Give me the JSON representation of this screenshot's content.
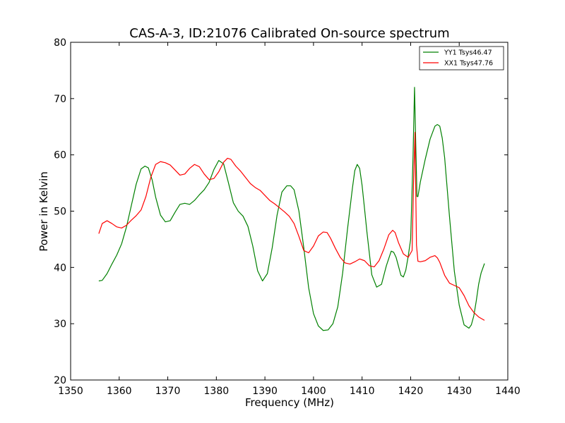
{
  "chart_data": {
    "type": "line",
    "title": "CAS-A-3, ID:21076 Calibrated On-source spectrum",
    "xlabel": "Frequency (MHz)",
    "ylabel": "Power in Kelvin",
    "xlim": [
      1350,
      1440
    ],
    "ylim": [
      20,
      80
    ],
    "xticks": [
      1350,
      1360,
      1370,
      1380,
      1390,
      1400,
      1410,
      1420,
      1430,
      1440
    ],
    "yticks": [
      20,
      30,
      40,
      50,
      60,
      70,
      80
    ],
    "grid": false,
    "legend_position": "top-right",
    "series": [
      {
        "name": "YY1 Tsys46.47",
        "color": "#008000",
        "x": [
          1355.8,
          1356.5,
          1357.5,
          1358.5,
          1359.5,
          1360.5,
          1361.5,
          1362.5,
          1363.5,
          1364.5,
          1365.3,
          1366.0,
          1366.8,
          1367.5,
          1368.5,
          1369.5,
          1370.5,
          1371.5,
          1372.5,
          1373.5,
          1374.5,
          1375.5,
          1376.5,
          1377.5,
          1378.5,
          1379.5,
          1380.5,
          1381.5,
          1382.5,
          1383.5,
          1384.5,
          1385.5,
          1386.5,
          1387.5,
          1388.5,
          1389.5,
          1390.5,
          1391.5,
          1392.5,
          1393.5,
          1394.5,
          1395.3,
          1396.0,
          1397.0,
          1398.0,
          1399.0,
          1400.0,
          1401.0,
          1402.0,
          1403.0,
          1404.0,
          1405.0,
          1406.0,
          1407.0,
          1408.0,
          1408.5,
          1409.0,
          1409.5,
          1410.0,
          1410.5,
          1411.0,
          1412.0,
          1413.0,
          1414.0,
          1415.0,
          1416.0,
          1416.5,
          1417.0,
          1418.0,
          1418.5,
          1419.0,
          1419.5,
          1420.0,
          1420.5,
          1420.8,
          1421.0,
          1421.3,
          1421.5,
          1422.0,
          1423.0,
          1424.0,
          1425.0,
          1425.5,
          1426.0,
          1426.5,
          1427.0,
          1428.0,
          1429.0,
          1430.0,
          1431.0,
          1432.0,
          1432.5,
          1433.0,
          1433.5,
          1434.0,
          1434.5,
          1435.2
        ],
        "y": [
          37.6,
          37.7,
          38.9,
          40.6,
          42.2,
          44.2,
          47.2,
          51.0,
          54.8,
          57.5,
          58.0,
          57.7,
          55.5,
          52.5,
          49.3,
          48.1,
          48.3,
          49.8,
          51.2,
          51.4,
          51.2,
          51.9,
          52.9,
          53.8,
          55.1,
          57.4,
          59.0,
          58.4,
          55.0,
          51.5,
          50.0,
          49.1,
          47.3,
          43.8,
          39.4,
          37.6,
          38.9,
          43.5,
          49.3,
          53.4,
          54.5,
          54.5,
          53.8,
          50.0,
          43.5,
          36.4,
          31.8,
          29.6,
          28.8,
          28.9,
          30.0,
          33.0,
          39.0,
          46.8,
          54.0,
          57.2,
          58.3,
          57.6,
          54.6,
          50.5,
          46.3,
          38.7,
          36.5,
          37.0,
          40.3,
          42.9,
          42.7,
          41.8,
          38.6,
          38.3,
          39.5,
          42.0,
          45.0,
          60.0,
          72.0,
          64.0,
          52.6,
          52.6,
          55.2,
          59.2,
          62.8,
          65.1,
          65.4,
          65.1,
          63.0,
          59.5,
          49.0,
          39.3,
          33.3,
          29.8,
          29.2,
          29.8,
          31.4,
          34.0,
          37.0,
          39.0,
          40.7
        ]
      },
      {
        "name": "XX1 Tsys47.76",
        "color": "#ff0000",
        "x": [
          1355.8,
          1356.5,
          1357.5,
          1358.5,
          1359.5,
          1360.5,
          1361.5,
          1362.5,
          1363.5,
          1364.5,
          1365.5,
          1366.5,
          1367.5,
          1368.5,
          1369.5,
          1370.5,
          1371.5,
          1372.5,
          1373.5,
          1374.5,
          1375.5,
          1376.5,
          1377.5,
          1378.5,
          1379.5,
          1380.5,
          1381.5,
          1382.3,
          1383.0,
          1384.0,
          1385.0,
          1386.0,
          1387.0,
          1388.0,
          1389.0,
          1390.0,
          1391.0,
          1392.0,
          1393.0,
          1394.0,
          1395.0,
          1396.0,
          1397.0,
          1398.0,
          1399.0,
          1400.0,
          1401.0,
          1402.0,
          1402.8,
          1403.5,
          1404.5,
          1405.5,
          1406.5,
          1407.5,
          1408.5,
          1409.5,
          1410.5,
          1411.5,
          1412.5,
          1413.5,
          1414.5,
          1415.5,
          1416.3,
          1416.8,
          1417.5,
          1418.5,
          1419.5,
          1420.3,
          1420.6,
          1420.9,
          1421.2,
          1421.5,
          1422.0,
          1423.0,
          1424.0,
          1425.0,
          1425.5,
          1426.0,
          1427.0,
          1428.0,
          1429.0,
          1430.0,
          1431.0,
          1432.0,
          1433.0,
          1434.0,
          1435.2
        ],
        "y": [
          46.0,
          47.8,
          48.3,
          47.8,
          47.2,
          47.0,
          47.5,
          48.4,
          49.2,
          50.2,
          52.6,
          56.0,
          58.3,
          58.8,
          58.6,
          58.2,
          57.3,
          56.4,
          56.6,
          57.6,
          58.3,
          57.9,
          56.6,
          55.6,
          55.8,
          57.0,
          58.7,
          59.4,
          59.2,
          58.0,
          57.1,
          56.0,
          54.9,
          54.2,
          53.7,
          52.8,
          51.9,
          51.3,
          50.6,
          49.9,
          49.1,
          47.8,
          45.5,
          43.0,
          42.6,
          43.8,
          45.6,
          46.3,
          46.2,
          45.2,
          43.4,
          41.8,
          40.8,
          40.6,
          41.0,
          41.5,
          41.2,
          40.3,
          40.1,
          41.2,
          43.3,
          45.8,
          46.6,
          46.2,
          44.4,
          42.4,
          41.8,
          43.0,
          55.0,
          64.0,
          44.0,
          41.1,
          41.0,
          41.2,
          41.8,
          42.1,
          41.7,
          40.9,
          38.6,
          37.2,
          36.8,
          36.4,
          35.0,
          33.2,
          32.0,
          31.2,
          30.6
        ]
      }
    ]
  }
}
